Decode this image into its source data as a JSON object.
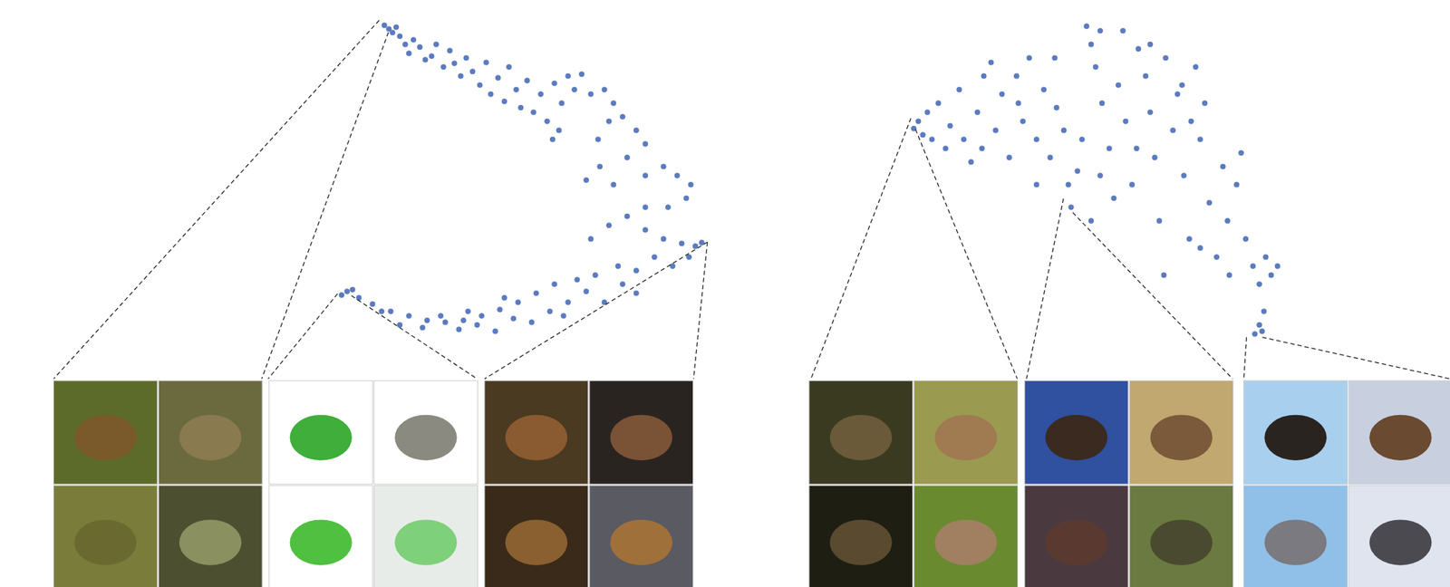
{
  "chart_data": [
    {
      "type": "scatter",
      "color": "#5b7bc0",
      "marker": "circle",
      "grid": false,
      "tick_labels": false,
      "xlim": [
        355,
        780
      ],
      "ylim": [
        15,
        390
      ],
      "x": [
        413,
        418,
        422,
        426,
        430,
        436,
        440,
        445,
        452,
        458,
        465,
        470,
        478,
        485,
        490,
        497,
        503,
        510,
        518,
        525,
        530,
        538,
        545,
        550,
        558,
        563,
        570,
        577,
        585,
        592,
        598,
        600,
        608,
        615,
        622,
        630,
        605,
        640,
        655,
        665,
        660,
        648,
        675,
        690,
        700,
        680,
        650,
        635,
        665,
        700,
        720,
        735,
        750,
        745,
        725,
        700,
        680,
        660,
        640,
        700,
        720,
        740,
        755,
        762,
        748,
        730,
        710,
        690,
        670,
        645,
        625,
        600,
        580,
        560,
        540,
        520,
        500,
        480,
        460,
        440,
        420,
        400,
        385,
        372,
        366,
        378,
        410,
        430,
        455,
        475,
        495,
        515,
        535,
        555,
        575,
        595,
        615,
        635,
        655,
        675,
        690,
        610,
        545,
        505
      ],
      "values": [
        376,
        372,
        368,
        374,
        364,
        355,
        345,
        360,
        352,
        338,
        342,
        355,
        330,
        348,
        334,
        320,
        340,
        325,
        310,
        335,
        300,
        318,
        292,
        330,
        305,
        285,
        315,
        280,
        300,
        270,
        250,
        312,
        290,
        320,
        305,
        322,
        260,
        300,
        305,
        290,
        270,
        250,
        275,
        260,
        245,
        230,
        220,
        205,
        200,
        210,
        220,
        210,
        200,
        185,
        175,
        175,
        165,
        155,
        140,
        150,
        140,
        135,
        132,
        136,
        120,
        110,
        120,
        105,
        110,
        100,
        95,
        90,
        80,
        70,
        62,
        55,
        50,
        48,
        50,
        55,
        60,
        68,
        75,
        82,
        78,
        84,
        60,
        45,
        42,
        55,
        40,
        45,
        38,
        52,
        48,
        60,
        70,
        82,
        70,
        90,
        80,
        55,
        75,
        60
      ]
    },
    {
      "type": "scatter",
      "color": "#5b7bc0",
      "marker": "circle",
      "grid": false,
      "tick_labels": false,
      "xlim": [
        960,
        1400
      ],
      "ylim": [
        15,
        390
      ],
      "x": [
        985,
        990,
        995,
        1000,
        1005,
        1012,
        1020,
        1025,
        1035,
        1040,
        1048,
        1055,
        1062,
        1070,
        1075,
        1082,
        1090,
        1098,
        1105,
        1112,
        1120,
        1128,
        1135,
        1142,
        1150,
        1155,
        1158,
        1165,
        1170,
        1175,
        1180,
        1185,
        1190,
        1192,
        1200,
        1205,
        1210,
        1218,
        1225,
        1232,
        1240,
        1245,
        1250,
        1255,
        1262,
        1270,
        1275,
        1282,
        1288,
        1295,
        1300,
        1305,
        1310,
        1318,
        1325,
        1332,
        1340,
        1345,
        1350,
        1358,
        1365,
        1372,
        1378,
        1385,
        1370,
        1365,
        1360,
        1368,
        1290,
        1230,
        1180,
        1190,
        1140,
        1060,
        1100,
        1260,
        1300,
        1330,
        1120,
        1215,
        1245,
        1280
      ],
      "values": [
        262,
        270,
        255,
        280,
        250,
        290,
        240,
        265,
        305,
        250,
        225,
        280,
        320,
        335,
        260,
        300,
        230,
        320,
        270,
        340,
        250,
        305,
        230,
        285,
        260,
        200,
        175,
        215,
        250,
        375,
        355,
        330,
        370,
        290,
        240,
        185,
        310,
        270,
        200,
        350,
        320,
        280,
        230,
        160,
        340,
        260,
        300,
        210,
        140,
        330,
        250,
        290,
        180,
        120,
        220,
        100,
        200,
        235,
        140,
        110,
        90,
        120,
        100,
        110,
        60,
        45,
        35,
        38,
        270,
        240,
        160,
        210,
        340,
        240,
        290,
        100,
        130,
        160,
        200,
        370,
        355,
        310
      ]
    }
  ]
}
